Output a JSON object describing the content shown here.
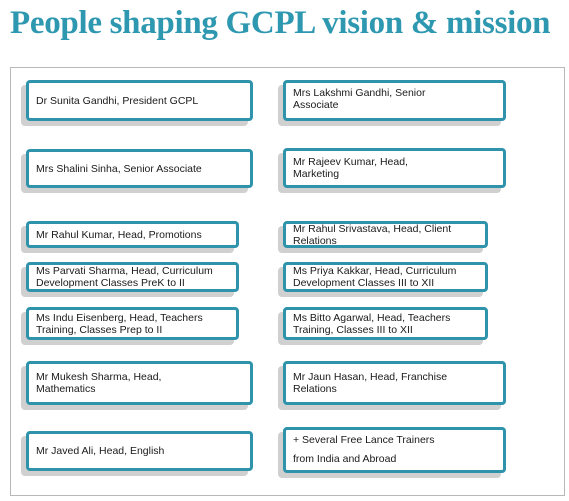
{
  "title": "People shaping GCPL vision & mission",
  "colors": {
    "title": "#2e98b0",
    "card_border": "#2f93ab",
    "card_shadow": "#d0d0d0"
  },
  "people": {
    "left": [
      "Dr Sunita Gandhi, President GCPL",
      "Mrs Shalini Sinha, Senior Associate",
      "Mr Rahul Kumar, Head, Promotions",
      "Ms Parvati Sharma, Head, Curriculum\nDevelopment Classes PreK to II",
      "Ms Indu Eisenberg, Head, Teachers\nTraining, Classes Prep to II",
      "Mr Mukesh Sharma, Head,\nMathematics",
      "Mr Javed Ali, Head, English"
    ],
    "right": [
      "Mrs Lakshmi Gandhi, Senior\nAssociate",
      "Mr Rajeev Kumar, Head,\nMarketing",
      "Mr Rahul Srivastava, Head, Client\nRelations",
      "Ms Priya Kakkar, Head, Curriculum\nDevelopment Classes III to XII",
      "Ms Bitto Agarwal, Head, Teachers\nTraining, Classes III to XII",
      "Mr Jaun Hasan, Head, Franchise\nRelations",
      "+ Several Free Lance Trainers\nfrom India and Abroad"
    ]
  }
}
